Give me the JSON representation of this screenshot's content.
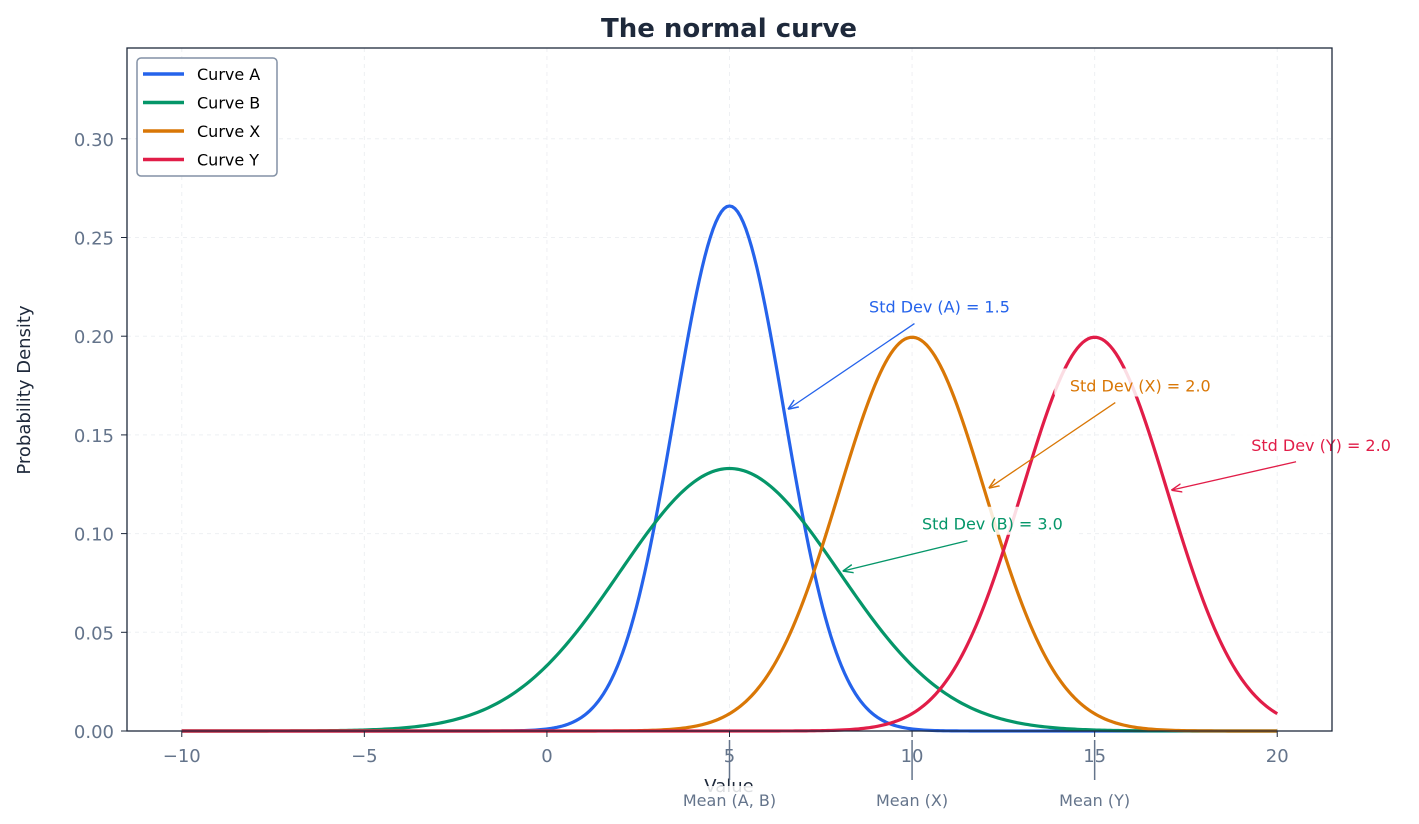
{
  "chart_data": {
    "type": "line",
    "title": "The normal curve",
    "xlabel": "Value",
    "ylabel": "Probability Density",
    "xlim": [
      -11.5,
      21.5
    ],
    "ylim": [
      0,
      0.346
    ],
    "xticks": [
      -10,
      -5,
      0,
      5,
      10,
      15,
      20
    ],
    "xtick_labels": [
      "−10",
      "−5",
      "0",
      "5",
      "10",
      "15",
      "20"
    ],
    "yticks": [
      0,
      0.05,
      0.1,
      0.15,
      0.2,
      0.25,
      0.3
    ],
    "ytick_labels": [
      "0.00",
      "0.05",
      "0.10",
      "0.15",
      "0.20",
      "0.25",
      "0.30"
    ],
    "grid": true,
    "legend_position": "top-left",
    "x_range": [
      -10,
      20
    ],
    "series": [
      {
        "name": "Curve A",
        "distribution": "normal",
        "mean": 5,
        "std": 1.5,
        "color": "#2563eb"
      },
      {
        "name": "Curve B",
        "distribution": "normal",
        "mean": 5,
        "std": 3.0,
        "color": "#059669"
      },
      {
        "name": "Curve X",
        "distribution": "normal",
        "mean": 10,
        "std": 2.0,
        "color": "#d97706"
      },
      {
        "name": "Curve Y",
        "distribution": "normal",
        "mean": 15,
        "std": 2.0,
        "color": "#e11d48"
      }
    ],
    "annotations": [
      {
        "text": "Std Dev (A) = 1.5",
        "xy": [
          6.6,
          0.163
        ],
        "xytext": [
          10.75,
          0.215
        ],
        "color": "#2563eb"
      },
      {
        "text": "Std Dev (B) = 3.0",
        "xy": [
          8.1,
          0.081
        ],
        "xytext": [
          12.2,
          0.105
        ],
        "color": "#059669"
      },
      {
        "text": "Std Dev (X) = 2.0",
        "xy": [
          12.1,
          0.123
        ],
        "xytext": [
          16.25,
          0.175
        ],
        "color": "#d97706"
      },
      {
        "text": "Std Dev (Y) = 2.0",
        "xy": [
          17.1,
          0.122
        ],
        "xytext": [
          21.2,
          0.145
        ],
        "color": "#e11d48"
      }
    ],
    "mean_markers": [
      {
        "x": 5,
        "label": "Mean (A, B)"
      },
      {
        "x": 10,
        "label": "Mean (X)"
      },
      {
        "x": 15,
        "label": "Mean (Y)"
      }
    ]
  }
}
